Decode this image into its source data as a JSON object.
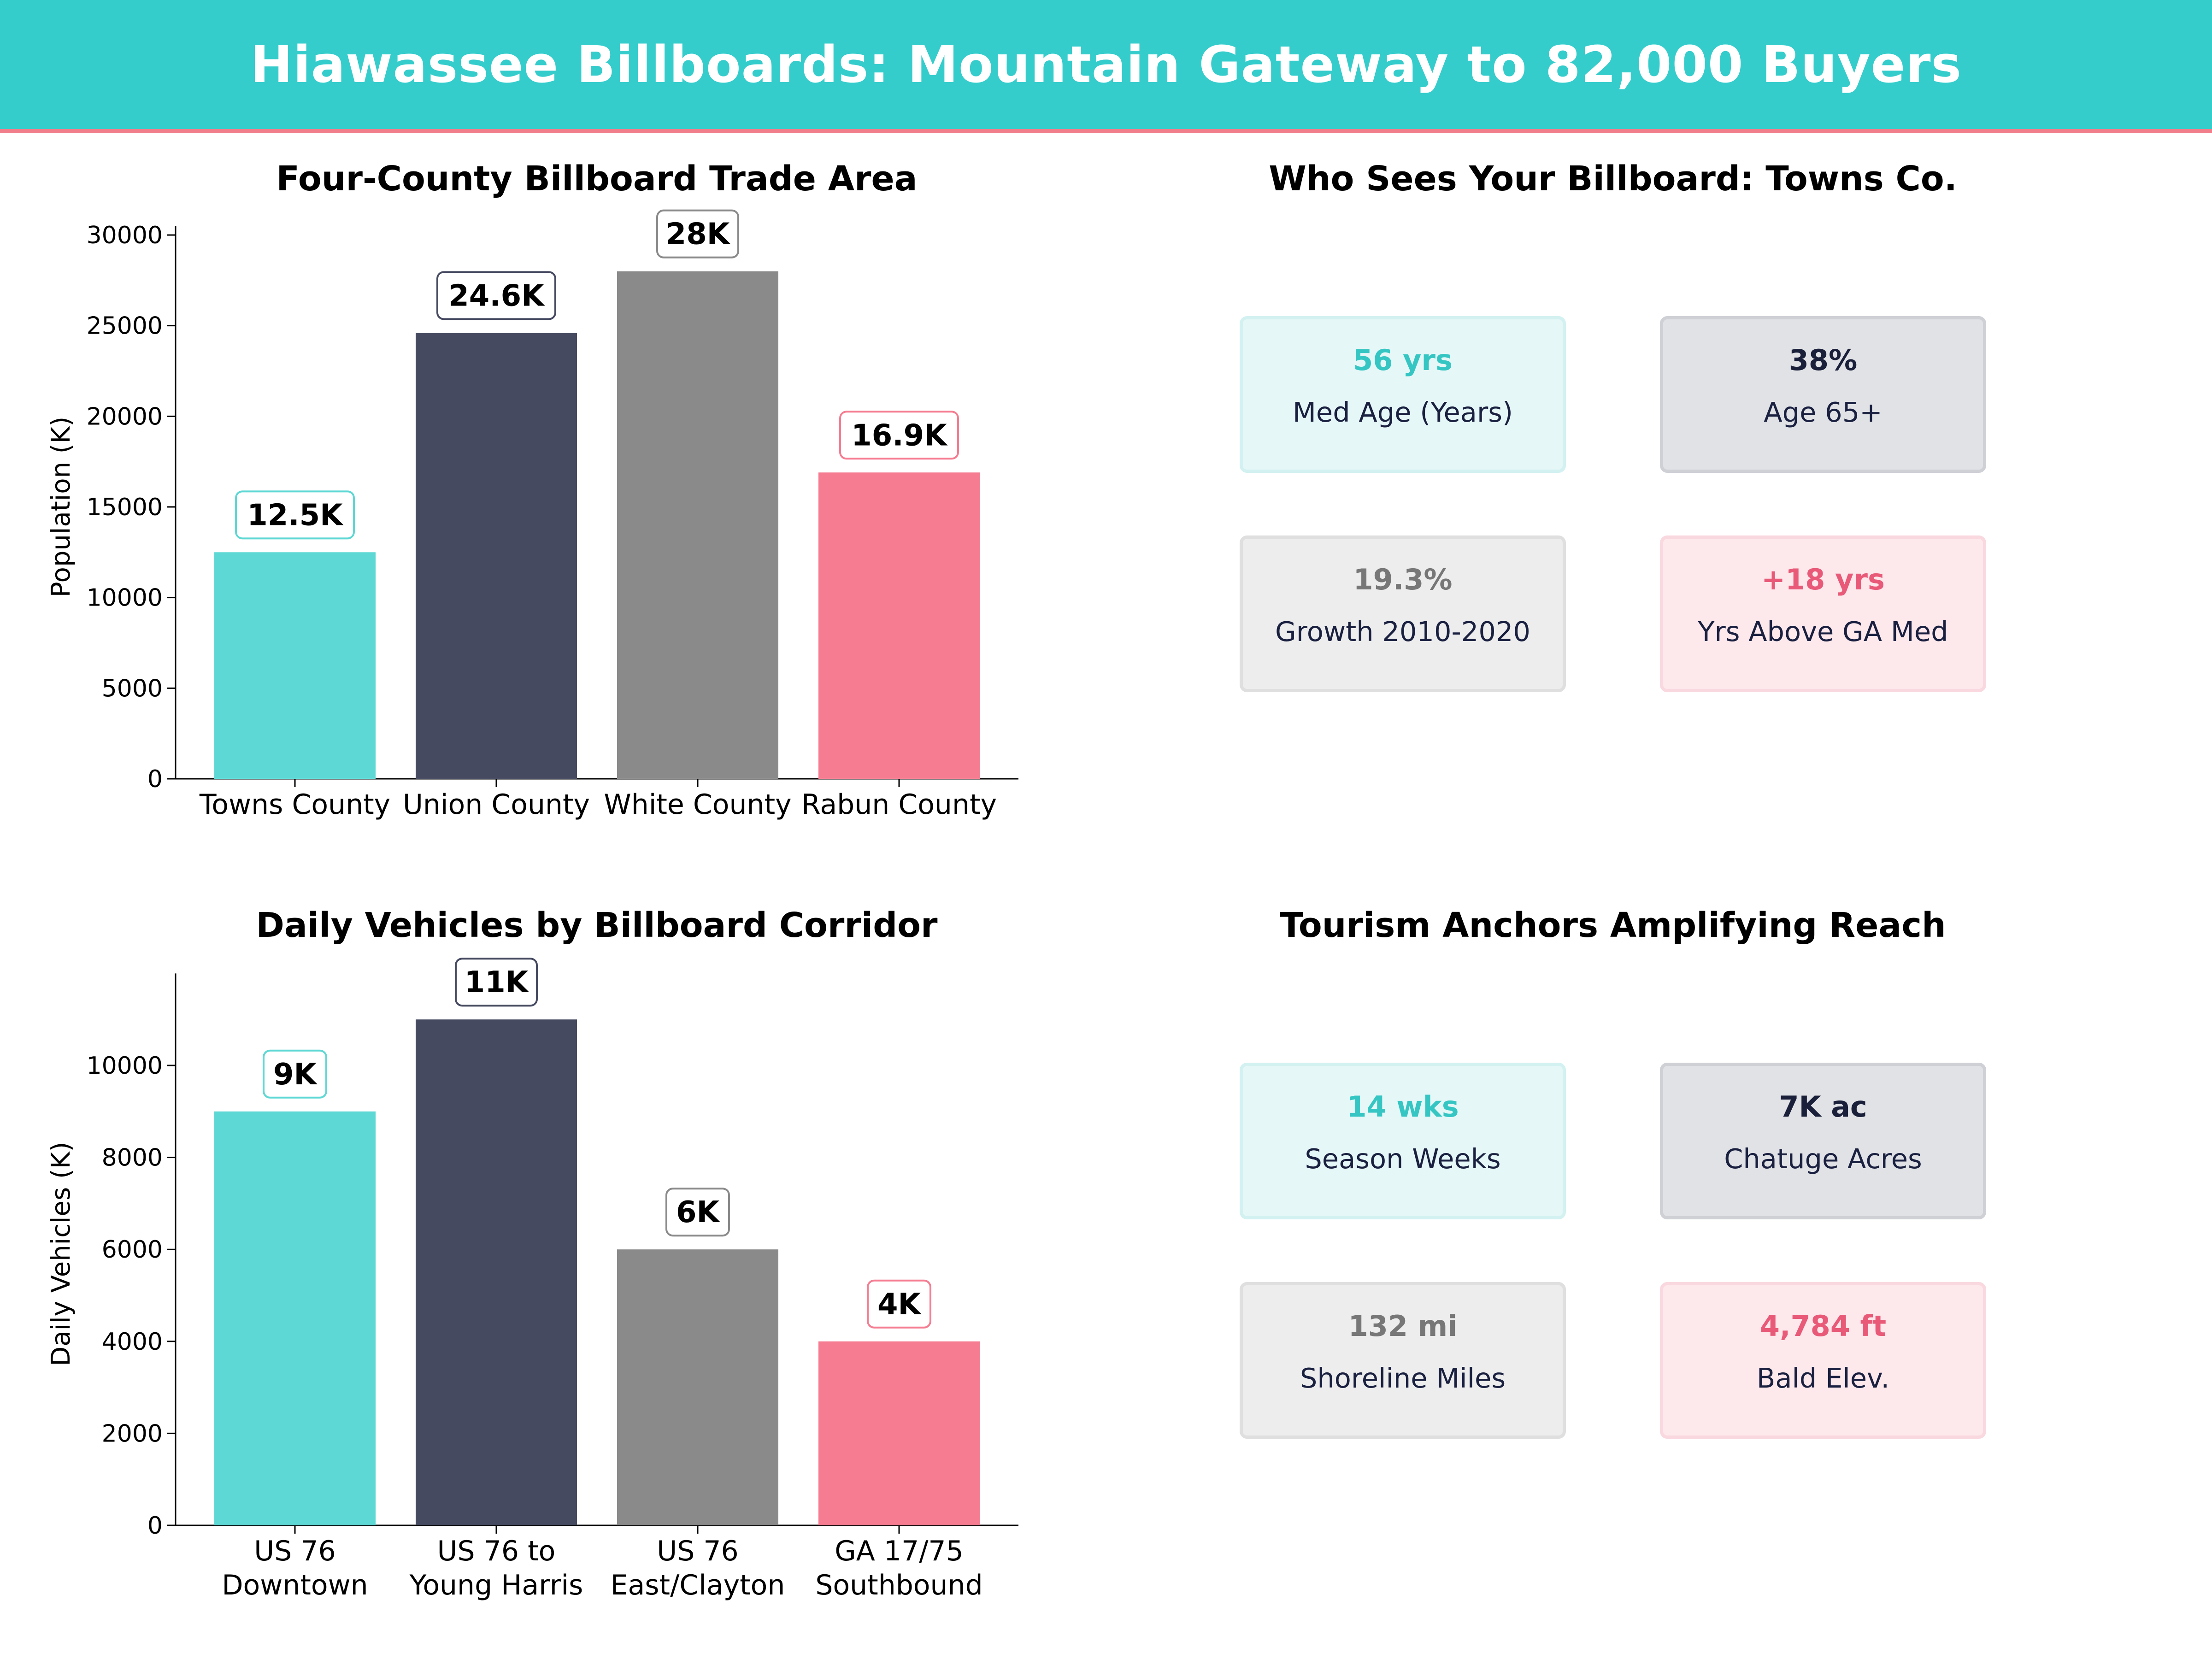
{
  "header": {
    "title": "Hiawassee Billboards: Mountain Gateway to 82,000 Buyers"
  },
  "colors": {
    "teal": "#5dd8d4",
    "navy": "#464a61",
    "gray": "#8a8a8a",
    "pink": "#f57c91"
  },
  "chart_data": [
    {
      "type": "bar",
      "title": "Four-County Billboard Trade Area",
      "xlabel": "",
      "ylabel": "Population (K)",
      "categories": [
        "Towns County",
        "Union County",
        "White County",
        "Rabun County"
      ],
      "values": [
        12500,
        24600,
        28000,
        16900
      ],
      "data_labels": [
        "12.5K",
        "24.6K",
        "28K",
        "16.9K"
      ],
      "ylim": [
        0,
        30000
      ],
      "yticks": [
        "0",
        "5000",
        "10000",
        "15000",
        "20000",
        "25000",
        "30000"
      ],
      "bar_colors": [
        "#5dd8d4",
        "#464a61",
        "#8a8a8a",
        "#f57c91"
      ],
      "label_border_colors": [
        "#5dd8d4",
        "#464a61",
        "#8a8a8a",
        "#f57c91"
      ],
      "grid": false
    },
    {
      "type": "bar",
      "title": "Daily Vehicles by Billboard Corridor",
      "xlabel": "",
      "ylabel": "Daily Vehicles (K)",
      "categories": [
        "US 76\nDowntown",
        "US 76 to\nYoung Harris",
        "US 76\nEast/Clayton",
        "GA 17/75\nSouthbound"
      ],
      "values": [
        9000,
        11000,
        6000,
        4000
      ],
      "data_labels": [
        "9K",
        "11K",
        "6K",
        "4K"
      ],
      "ylim": [
        0,
        11800
      ],
      "yticks": [
        "0",
        "2000",
        "4000",
        "6000",
        "8000",
        "10000"
      ],
      "bar_colors": [
        "#5dd8d4",
        "#464a61",
        "#8a8a8a",
        "#f57c91"
      ],
      "label_border_colors": [
        "#5dd8d4",
        "#464a61",
        "#8a8a8a",
        "#f57c91"
      ],
      "grid": false
    }
  ],
  "panels": {
    "demographics": {
      "title": "Who Sees Your Billboard: Towns Co.",
      "cards": [
        {
          "value": "56 yrs",
          "label": "Med Age (Years)",
          "value_color": "#35c6c3",
          "bg": "#e5f7f7",
          "border": "#d3f1f1"
        },
        {
          "value": "38%",
          "label": "Age 65+",
          "value_color": "#1a1f3a",
          "bg": "#e1e2e6",
          "border": "#cfd0d6"
        },
        {
          "value": "19.3%",
          "label": "Growth 2010-2020",
          "value_color": "#777777",
          "bg": "#ededed",
          "border": "#dfdfdf"
        },
        {
          "value": "+18 yrs",
          "label": "Yrs Above GA Med",
          "value_color": "#e85a78",
          "bg": "#fde8ec",
          "border": "#f9d8df"
        }
      ]
    },
    "tourism": {
      "title": "Tourism Anchors Amplifying Reach",
      "cards": [
        {
          "value": "14 wks",
          "label": "Season Weeks",
          "value_color": "#35c6c3",
          "bg": "#e5f7f7",
          "border": "#d3f1f1"
        },
        {
          "value": "7K ac",
          "label": "Chatuge Acres",
          "value_color": "#1a1f3a",
          "bg": "#e1e2e6",
          "border": "#cfd0d6"
        },
        {
          "value": "132 mi",
          "label": "Shoreline Miles",
          "value_color": "#777777",
          "bg": "#ededed",
          "border": "#dfdfdf"
        },
        {
          "value": "4,784 ft",
          "label": "Bald Elev.",
          "value_color": "#e85a78",
          "bg": "#fde8ec",
          "border": "#f9d8df"
        }
      ]
    }
  }
}
